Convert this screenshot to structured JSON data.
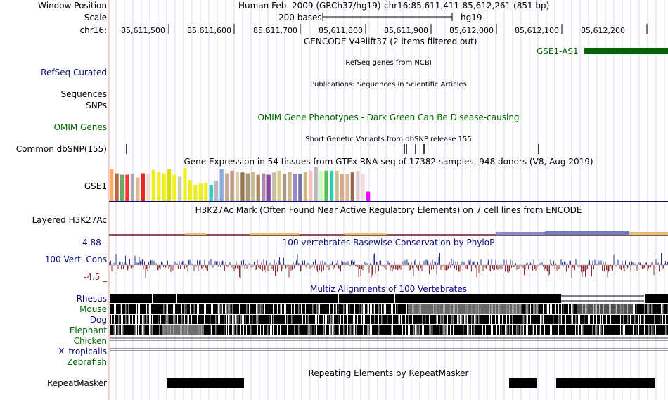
{
  "header": {
    "window_position_label": "Window Position",
    "scale_label": "Scale",
    "chrom_label": "chr16:",
    "assembly": "Human Feb. 2009 (GRCh37/hg19)",
    "position": "chr16:85,611,411-85,612,261 (851 bp)",
    "scale_text": "200 bases",
    "scale_db": "hg19",
    "ruler_ticks": [
      "85,611,500",
      "85,611,600",
      "85,611,700",
      "85,611,800",
      "85,611,900",
      "85,612,000",
      "85,612,100",
      "85,612,200"
    ]
  },
  "tracks": {
    "gencode": {
      "title": "GENCODE V49lift37 (2 items filtered out)",
      "gene": "GSE1-AS1"
    },
    "refseq": {
      "label": "RefSeq Curated",
      "title": "RefSeq genes from NCBI"
    },
    "publications": {
      "label": "Sequences",
      "title": "Publications: Sequences in Scientific Articles"
    },
    "snps": {
      "label": "SNPs"
    },
    "omim": {
      "label": "OMIM Genes",
      "title": "OMIM Gene Phenotypes - Dark Green Can Be Disease-causing"
    },
    "dbsnp": {
      "label": "Common dbSNP(155)",
      "title": "Short Genetic Variants from dbSNP release 155"
    },
    "gtex": {
      "label": "GSE1",
      "title": "Gene Expression in 54 tissues from GTEx RNA-seq of 17382 samples, 948 donors (V8, Aug 2019)"
    },
    "h3k27ac": {
      "label": "Layered H3K27Ac",
      "title": "H3K27Ac Mark (Often Found Near Active Regulatory Elements) on 7 cell lines from ENCODE"
    },
    "cons": {
      "label": "100 Vert. Cons",
      "title": "100 vertebrates Basewise Conservation by PhyloP",
      "ymax": "4.88 _",
      "ymin": "-4.5 _"
    },
    "multiz": {
      "title": "Multiz Alignments of 100 Vertebrates",
      "species": [
        "Rhesus",
        "Mouse",
        "Dog",
        "Elephant",
        "Chicken",
        "X_tropicalis",
        "Zebrafish"
      ]
    },
    "repeatmasker": {
      "label": "RepeatMasker",
      "title": "Repeating Elements by RepeatMasker"
    }
  },
  "colors": {
    "gencode": "#006400",
    "refseq": "#0c0c78",
    "omim": "#006400",
    "cons_pos": "#2c2c8c",
    "cons_neg": "#8c2c2c",
    "gtex_bars": [
      "#ffaa66",
      "#bb6644",
      "#66aa66",
      "#ff3333",
      "#aaaaaa",
      "#ddbb99",
      "#ee2222",
      "#eeddcc",
      "#eeee22",
      "#eeee22",
      "#eeee22",
      "#dddd00",
      "#eeee22",
      "#ccccaa",
      "#eeee22",
      "#eeee22",
      "#eeee22",
      "#eeee22",
      "#eeee22",
      "#33cccc",
      "#bbbbbb",
      "#88aadd",
      "#ccaa99",
      "#bb9977",
      "#ddccaa",
      "#997755",
      "#aa9977",
      "#ccbb99",
      "#aa8866",
      "#aa88aa",
      "#8844aa",
      "#ccbbaa",
      "#ddcc88",
      "#aa9988",
      "#ccbb88",
      "#9988cc",
      "#7777aa",
      "#ccbb77",
      "#ffbbbb",
      "#bbbbbb",
      "#ccffbb",
      "#55bb55",
      "#33ccaa",
      "#ccbb99",
      "#ddaa88",
      "#ddbb99",
      "#996655",
      "#ddcccc",
      "#eedddd",
      "#ff00ff"
    ]
  },
  "data_values": {
    "gtex_heights": [
      0.95,
      0.82,
      0.78,
      0.78,
      0.8,
      0.7,
      0.82,
      0.8,
      0.92,
      0.85,
      0.82,
      0.95,
      0.78,
      0.72,
      0.98,
      0.62,
      0.48,
      0.52,
      0.55,
      0.48,
      0.6,
      0.95,
      0.82,
      0.9,
      0.86,
      0.85,
      0.82,
      0.86,
      0.78,
      0.82,
      0.78,
      0.85,
      0.9,
      0.8,
      0.86,
      0.8,
      0.8,
      0.86,
      0.9,
      1.0,
      0.9,
      0.9,
      0.9,
      0.9,
      0.8,
      0.8,
      0.85,
      0.9,
      0.8,
      0.28
    ]
  }
}
